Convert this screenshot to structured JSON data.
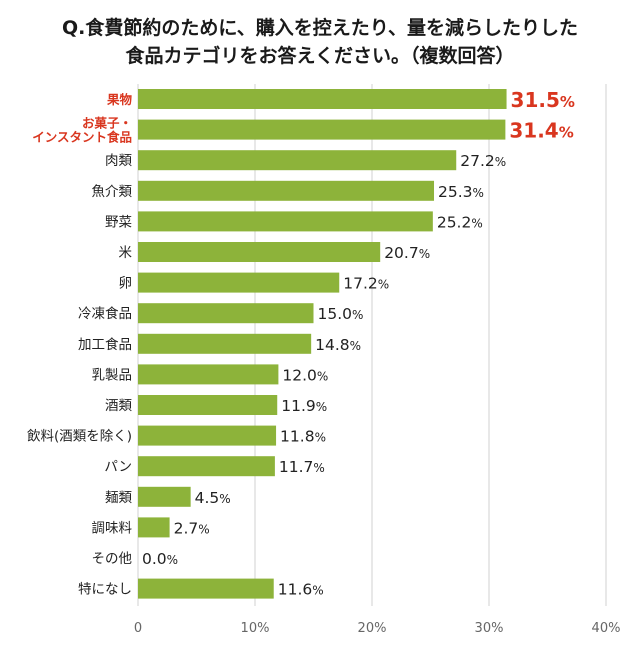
{
  "title_lines": [
    "Q.食費節約のために、購入を控えたり、量を減らしたりした",
    "食品カテゴリをお答えください。（複数回答）"
  ],
  "colors": {
    "bar": "#8db33a",
    "highlight": "#d9361f",
    "text": "#222222",
    "grid": "#d0d0d0",
    "axis_text": "#666666"
  },
  "chart_data": {
    "type": "bar",
    "orientation": "horizontal",
    "title": "Q.食費節約のために、購入を控えたり、量を減らしたりした食品カテゴリをお答えください。（複数回答）",
    "unit": "%",
    "categories": [
      [
        "果物"
      ],
      [
        "お菓子・",
        "インスタント食品"
      ],
      [
        "肉類"
      ],
      [
        "魚介類"
      ],
      [
        "野菜"
      ],
      [
        "米"
      ],
      [
        "卵"
      ],
      [
        "冷凍食品"
      ],
      [
        "加工食品"
      ],
      [
        "乳製品"
      ],
      [
        "酒類"
      ],
      [
        "飲料(酒類を除く)"
      ],
      [
        "パン"
      ],
      [
        "麺類"
      ],
      [
        "調味料"
      ],
      [
        "その他"
      ],
      [
        "特になし"
      ]
    ],
    "values": [
      31.5,
      31.4,
      27.2,
      25.3,
      25.2,
      20.7,
      17.2,
      15.0,
      14.8,
      12.0,
      11.9,
      11.8,
      11.7,
      4.5,
      2.7,
      0.0,
      11.6
    ],
    "value_labels": [
      "31.5",
      "31.4",
      "27.2",
      "25.3",
      "25.2",
      "20.7",
      "17.2",
      "15.0",
      "14.8",
      "12.0",
      "11.9",
      "11.8",
      "11.7",
      "4.5",
      "2.7",
      "0.0",
      "11.6"
    ],
    "highlighted": [
      0,
      1
    ],
    "xlim": [
      0,
      40
    ],
    "xticks": [
      0,
      10,
      20,
      30,
      40
    ],
    "xtick_labels": [
      "0",
      "10%",
      "20%",
      "30%",
      "40%"
    ],
    "grid": true
  }
}
